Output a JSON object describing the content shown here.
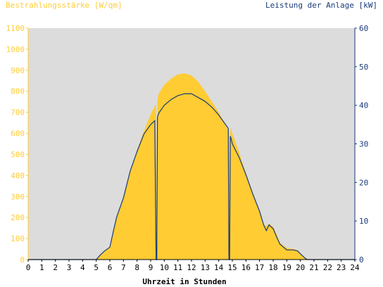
{
  "chart_data": {
    "type": "area",
    "title_left": "Bestrahlungsstärke [W/qm]",
    "title_right": "Leistung der Anlage [kW]",
    "xlabel": "Uhrzeit in Stunden",
    "xlim": [
      0,
      24
    ],
    "ylim_left": [
      0,
      1100
    ],
    "ylim_right": [
      0,
      60
    ],
    "x_ticks": [
      "0",
      "1",
      "2",
      "3",
      "4",
      "5",
      "6",
      "7",
      "8",
      "9",
      "10",
      "11",
      "12",
      "13",
      "14",
      "15",
      "16",
      "17",
      "18",
      "19",
      "20",
      "21",
      "22",
      "23",
      "24"
    ],
    "y_ticks_left": [
      "0",
      "100",
      "200",
      "300",
      "400",
      "500",
      "600",
      "700",
      "800",
      "900",
      "1000",
      "1100"
    ],
    "y_ticks_right": [
      "0",
      "10",
      "20",
      "30",
      "40",
      "50",
      "60"
    ],
    "grid": false,
    "colors": {
      "irradiance": "#ffcc33",
      "power": "#1a3a7a",
      "plot_bg": "#dcdcdc",
      "axis_left": "#ffcc33",
      "axis_right": "#1a3a7a"
    },
    "series": [
      {
        "axis": "left",
        "x": [
          0,
          5,
          5.3,
          5.6,
          6,
          6.3,
          6.5,
          7,
          7.5,
          8,
          8.5,
          9,
          9.4,
          9.45,
          9.5,
          9.6,
          10,
          10.5,
          11,
          11.5,
          12,
          12.5,
          13,
          13.5,
          14,
          14.5,
          14.75,
          14.8,
          14.85,
          14.9,
          15,
          15.5,
          16,
          16.5,
          17,
          17.3,
          17.5,
          17.7,
          18,
          18.3,
          18.5,
          19,
          19.5,
          19.8,
          20,
          20.3,
          20.5,
          21,
          24
        ],
        "values": [
          0,
          0,
          20,
          40,
          60,
          150,
          200,
          300,
          420,
          520,
          610,
          690,
          740,
          0,
          760,
          790,
          830,
          860,
          880,
          885,
          875,
          845,
          800,
          750,
          700,
          640,
          600,
          0,
          620,
          625,
          600,
          510,
          410,
          320,
          230,
          165,
          160,
          170,
          155,
          115,
          80,
          55,
          50,
          45,
          30,
          10,
          0,
          0,
          0
        ]
      },
      {
        "axis": "right",
        "x": [
          0,
          5,
          5.3,
          5.6,
          6,
          6.3,
          6.5,
          7,
          7.5,
          8,
          8.5,
          9,
          9.3,
          9.4,
          9.45,
          9.5,
          9.6,
          10,
          10.5,
          11,
          11.5,
          12,
          12.5,
          13,
          13.5,
          14,
          14.5,
          14.7,
          14.75,
          14.8,
          14.85,
          14.9,
          15,
          15.5,
          16,
          16.5,
          17,
          17.3,
          17.5,
          17.7,
          18,
          18.3,
          18.5,
          19,
          19.5,
          19.8,
          20,
          20.3,
          20.5,
          21,
          24
        ],
        "values": [
          0,
          0,
          1.2,
          2.2,
          3.2,
          8,
          11,
          16,
          23,
          28,
          32.5,
          35,
          36,
          0,
          0,
          37,
          38,
          40,
          41.5,
          42.5,
          43,
          43,
          42,
          41,
          39.5,
          37.5,
          35,
          34,
          0,
          0,
          32,
          31.5,
          30,
          26.5,
          22,
          17,
          12.5,
          9,
          7.5,
          9,
          8,
          5.5,
          4,
          2.5,
          2.5,
          2.2,
          1.5,
          0.5,
          0,
          0,
          0
        ]
      }
    ]
  }
}
